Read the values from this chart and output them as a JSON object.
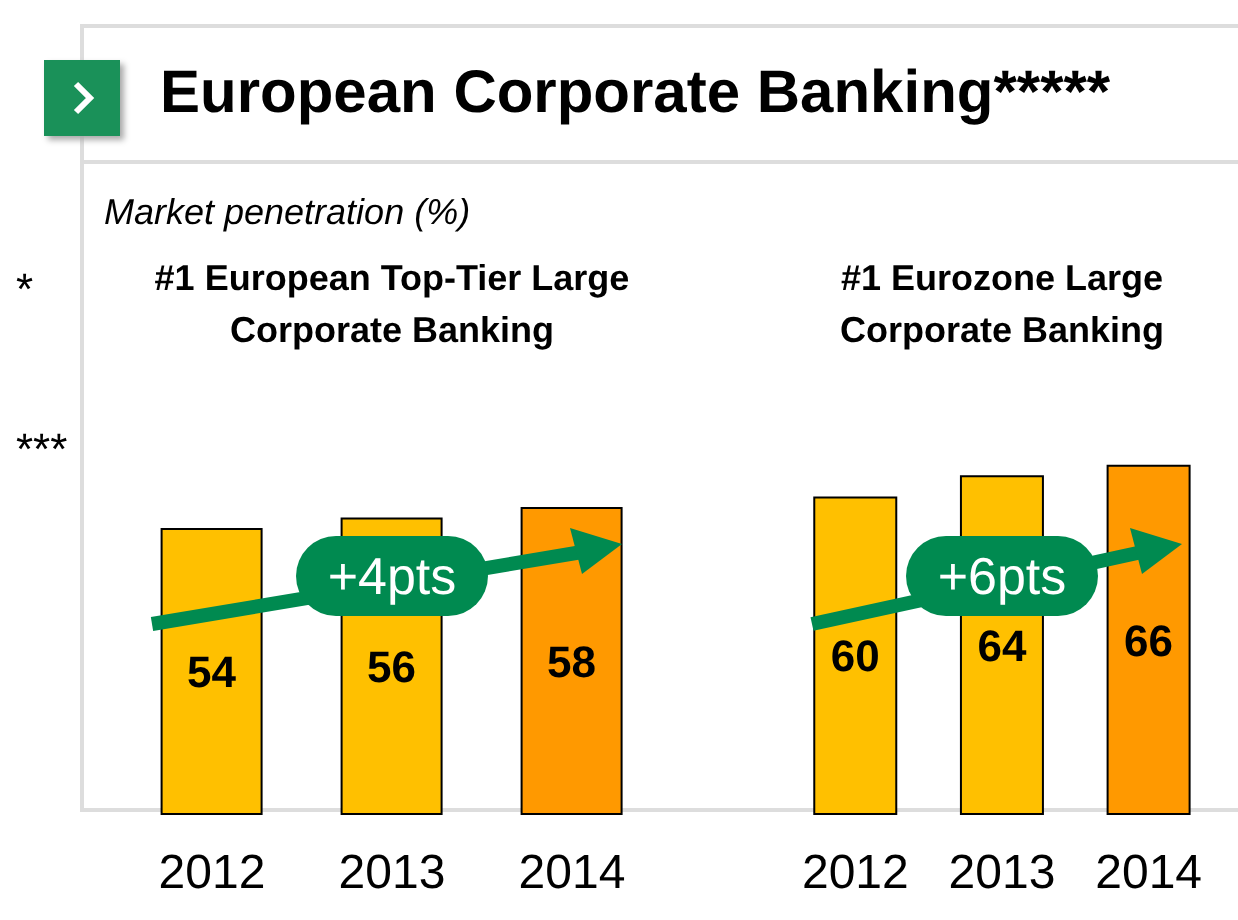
{
  "chart_data": [
    {
      "type": "bar",
      "title": "European Corporate Banking*****",
      "ylabel": "Market penetration (%)",
      "subtitle": "#1 European Top-Tier Large Corporate Banking",
      "categories": [
        "2012",
        "2013",
        "2014"
      ],
      "values": [
        54,
        56,
        58
      ],
      "colors": [
        "#ffc000",
        "#ffc000",
        "#ff9900"
      ],
      "data_labels": true,
      "annotations": [
        "+4pts",
        "*",
        "***"
      ]
    },
    {
      "type": "bar",
      "subtitle": "#1 Eurozone Large Corporate Banking",
      "categories": [
        "2012",
        "2013",
        "2014"
      ],
      "values": [
        60,
        64,
        66
      ],
      "colors": [
        "#ffc000",
        "#ffc000",
        "#ff9900"
      ],
      "data_labels": true,
      "annotations": [
        "+6pts"
      ]
    }
  ]
}
